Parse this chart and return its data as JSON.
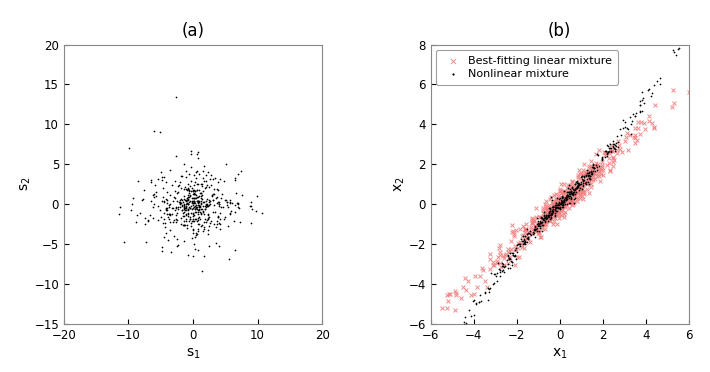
{
  "title_a": "(a)",
  "title_b": "(b)",
  "xlabel_a": "s$_1$",
  "ylabel_a": "s$_2$",
  "xlabel_b": "x$_1$",
  "ylabel_b": "x$_2$",
  "xlim_a": [
    -20,
    20
  ],
  "ylim_a": [
    -15,
    20
  ],
  "xlim_b": [
    -6,
    6
  ],
  "ylim_b": [
    -6,
    8
  ],
  "xticks_a": [
    -20,
    -10,
    0,
    10,
    20
  ],
  "yticks_a": [
    -15,
    -10,
    -5,
    0,
    5,
    10,
    15,
    20
  ],
  "xticks_b": [
    -6,
    -4,
    -2,
    0,
    2,
    4,
    6
  ],
  "yticks_b": [
    -6,
    -4,
    -2,
    0,
    2,
    4,
    6,
    8
  ],
  "dot_color": "black",
  "cross_color": "#f08080",
  "dot_size": 6,
  "cross_size": 8,
  "legend_label_cross": "Best-fitting linear mixture",
  "legend_label_dot": "Nonlinear mixture",
  "seed": 42,
  "n_samples": 500,
  "background_color": "white",
  "figsize": [
    7.1,
    3.72
  ],
  "dpi": 100
}
